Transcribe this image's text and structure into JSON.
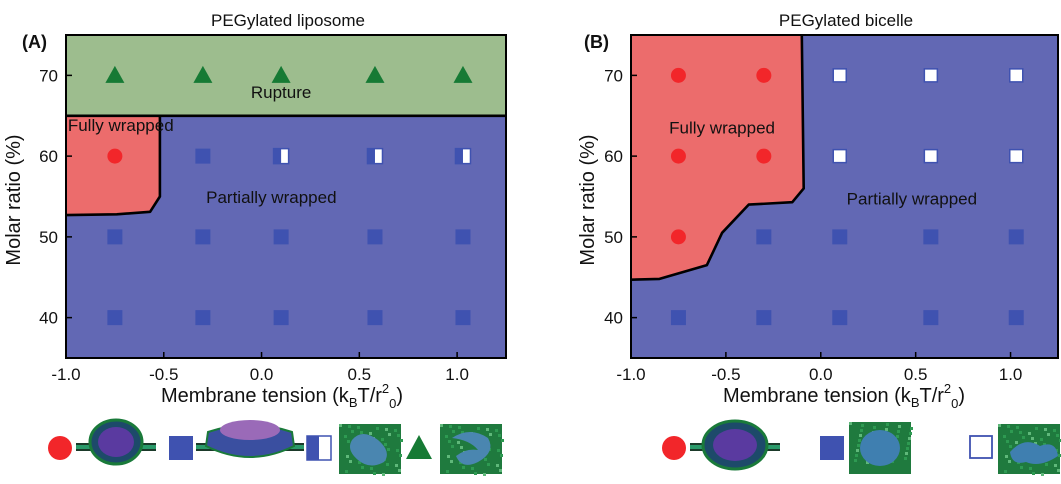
{
  "chart_data": [
    {
      "type": "phase-diagram",
      "panel_label": "(A)",
      "title": "PEGylated  liposome",
      "xlabel": "Membrane tension (k",
      "xlabel_sub1": "B",
      "xlabel_mid": "T/r",
      "xlabel_sup": "2",
      "xlabel_sub2": "0",
      "xlabel_end": ")",
      "ylabel": "Molar ratio (%)",
      "xlim": [
        -1.0,
        1.25
      ],
      "ylim": [
        35,
        75
      ],
      "xticks": [
        "-1.0",
        "-0.5",
        "0.0",
        "0.5",
        "1.0"
      ],
      "xtick_values": [
        -1.0,
        -0.5,
        0.0,
        0.5,
        1.0
      ],
      "yticks": [
        "40",
        "50",
        "60",
        "70"
      ],
      "ytick_values": [
        40,
        50,
        60,
        70
      ],
      "colors": {
        "rupture": "#9dbd8e",
        "fully": "#ec6c6c",
        "partial": "#6268b4",
        "circle": "#f2262a",
        "square": "#3f52b0",
        "triangle": "#167a34"
      },
      "regions": [
        {
          "label": "Rupture",
          "label_x": 0.1,
          "label_y": 67.2,
          "color": "#9dbd8e",
          "boundary": [
            [
              -1.0,
              75
            ],
            [
              1.25,
              75
            ],
            [
              1.25,
              65
            ],
            [
              -1.0,
              65
            ]
          ]
        },
        {
          "label": "Fully wrapped",
          "label_x": -0.72,
          "label_y": 63.1,
          "color": "#ec6c6c",
          "boundary": [
            [
              -1.0,
              65
            ],
            [
              -0.52,
              65
            ],
            [
              -0.52,
              55
            ],
            [
              -0.57,
              53.1
            ],
            [
              -0.74,
              52.8
            ],
            [
              -1.0,
              52.7
            ]
          ]
        },
        {
          "label": "Partially wrapped",
          "label_x": 0.05,
          "label_y": 54.2,
          "color": "#6268b4",
          "boundary": [
            [
              -1.0,
              65
            ],
            [
              1.25,
              65
            ],
            [
              1.25,
              35
            ],
            [
              -1.0,
              35
            ]
          ]
        }
      ],
      "points": [
        {
          "x": -0.75,
          "y": 70,
          "marker": "triangle"
        },
        {
          "x": -0.3,
          "y": 70,
          "marker": "triangle"
        },
        {
          "x": 0.1,
          "y": 70,
          "marker": "triangle"
        },
        {
          "x": 0.58,
          "y": 70,
          "marker": "triangle"
        },
        {
          "x": 1.03,
          "y": 70,
          "marker": "triangle"
        },
        {
          "x": -0.75,
          "y": 60,
          "marker": "circle"
        },
        {
          "x": -0.3,
          "y": 60,
          "marker": "square"
        },
        {
          "x": 0.1,
          "y": 60,
          "marker": "half-square"
        },
        {
          "x": 0.58,
          "y": 60,
          "marker": "half-square"
        },
        {
          "x": 1.03,
          "y": 60,
          "marker": "half-square"
        },
        {
          "x": -0.75,
          "y": 50,
          "marker": "square"
        },
        {
          "x": -0.3,
          "y": 50,
          "marker": "square"
        },
        {
          "x": 0.1,
          "y": 50,
          "marker": "square"
        },
        {
          "x": 0.58,
          "y": 50,
          "marker": "square"
        },
        {
          "x": 1.03,
          "y": 50,
          "marker": "square"
        },
        {
          "x": -0.75,
          "y": 40,
          "marker": "square"
        },
        {
          "x": -0.3,
          "y": 40,
          "marker": "square"
        },
        {
          "x": 0.1,
          "y": 40,
          "marker": "square"
        },
        {
          "x": 0.58,
          "y": 40,
          "marker": "square"
        },
        {
          "x": 1.03,
          "y": 40,
          "marker": "square"
        }
      ],
      "legend": [
        "circle",
        "square",
        "half-square",
        "triangle"
      ]
    },
    {
      "type": "phase-diagram",
      "panel_label": "(B)",
      "title": "PEGylated  bicelle",
      "xlabel": "Membrane tension (k",
      "xlabel_sub1": "B",
      "xlabel_mid": "T/r",
      "xlabel_sup": "2",
      "xlabel_sub2": "0",
      "xlabel_end": ")",
      "ylabel": "Molar ratio (%)",
      "xlim": [
        -1.0,
        1.25
      ],
      "ylim": [
        35,
        75
      ],
      "xticks": [
        "-1.0",
        "-0.5",
        "0.0",
        "0.5",
        "1.0"
      ],
      "xtick_values": [
        -1.0,
        -0.5,
        0.0,
        0.5,
        1.0
      ],
      "yticks": [
        "40",
        "50",
        "60",
        "70"
      ],
      "ytick_values": [
        40,
        50,
        60,
        70
      ],
      "colors": {
        "fully": "#ec6c6c",
        "partial": "#6268b4",
        "circle": "#f2262a",
        "square": "#3f52b0",
        "open_square_edge": "#3f52b0"
      },
      "regions": [
        {
          "label": "Fully wrapped",
          "label_x": -0.52,
          "label_y": 62.8,
          "color": "#ec6c6c",
          "boundary": [
            [
              -1.0,
              75
            ],
            [
              -0.1,
              75
            ],
            [
              -0.09,
              56
            ],
            [
              -0.15,
              54.3
            ],
            [
              -0.38,
              54.0
            ],
            [
              -0.52,
              50.5
            ],
            [
              -0.6,
              46.5
            ],
            [
              -0.85,
              44.8
            ],
            [
              -1.0,
              44.7
            ]
          ]
        },
        {
          "label": "Partially wrapped",
          "label_x": 0.48,
          "label_y": 54.0,
          "color": "#6268b4",
          "boundary": [
            [
              -1.0,
              75
            ],
            [
              1.25,
              75
            ],
            [
              1.25,
              35
            ],
            [
              -1.0,
              35
            ]
          ]
        }
      ],
      "points": [
        {
          "x": -0.75,
          "y": 70,
          "marker": "circle"
        },
        {
          "x": -0.3,
          "y": 70,
          "marker": "circle"
        },
        {
          "x": 0.1,
          "y": 70,
          "marker": "open-square"
        },
        {
          "x": 0.58,
          "y": 70,
          "marker": "open-square"
        },
        {
          "x": 1.03,
          "y": 70,
          "marker": "open-square"
        },
        {
          "x": -0.75,
          "y": 60,
          "marker": "circle"
        },
        {
          "x": -0.3,
          "y": 60,
          "marker": "circle"
        },
        {
          "x": 0.1,
          "y": 60,
          "marker": "open-square"
        },
        {
          "x": 0.58,
          "y": 60,
          "marker": "open-square"
        },
        {
          "x": 1.03,
          "y": 60,
          "marker": "open-square"
        },
        {
          "x": -0.75,
          "y": 50,
          "marker": "circle"
        },
        {
          "x": -0.3,
          "y": 50,
          "marker": "square"
        },
        {
          "x": 0.1,
          "y": 50,
          "marker": "square"
        },
        {
          "x": 0.58,
          "y": 50,
          "marker": "square"
        },
        {
          "x": 1.03,
          "y": 50,
          "marker": "square"
        },
        {
          "x": -0.75,
          "y": 40,
          "marker": "square"
        },
        {
          "x": -0.3,
          "y": 40,
          "marker": "square"
        },
        {
          "x": 0.1,
          "y": 40,
          "marker": "square"
        },
        {
          "x": 0.58,
          "y": 40,
          "marker": "square"
        },
        {
          "x": 1.03,
          "y": 40,
          "marker": "square"
        }
      ],
      "legend": [
        "circle",
        "square",
        "open-square"
      ]
    }
  ]
}
